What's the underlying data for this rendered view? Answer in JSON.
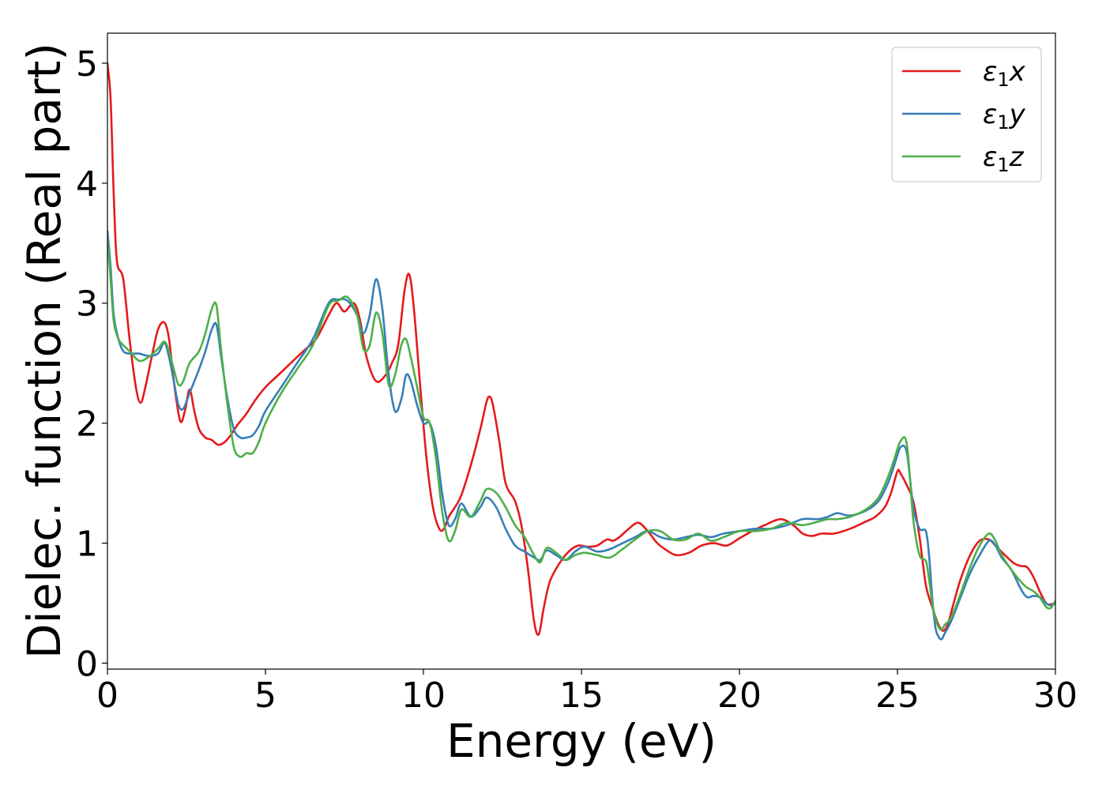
{
  "chart_data": {
    "type": "line",
    "title": "",
    "xlabel": "Energy (eV)",
    "ylabel": "Dielec. function (Real part)",
    "xlim": [
      0,
      30
    ],
    "ylim": [
      -0.05,
      5.25
    ],
    "xticks": [
      0,
      5,
      10,
      15,
      20,
      25,
      30
    ],
    "yticks": [
      0,
      1,
      2,
      3,
      4,
      5
    ],
    "grid": false,
    "legend_position": "top-right",
    "series": [
      {
        "name": "ε₁x",
        "legend_base": "ε",
        "legend_sub": "1",
        "legend_suffix": "x",
        "color": "#e41a1c",
        "x": [
          0,
          0.1,
          0.2,
          0.3,
          0.5,
          0.7,
          0.9,
          1.05,
          1.2,
          1.4,
          1.6,
          1.8,
          1.95,
          2.1,
          2.3,
          2.45,
          2.6,
          2.75,
          2.9,
          3.1,
          3.3,
          3.5,
          3.7,
          3.9,
          4.1,
          4.4,
          4.7,
          5.0,
          5.4,
          5.8,
          6.2,
          6.6,
          7.0,
          7.25,
          7.5,
          7.8,
          8.0,
          8.2,
          8.5,
          8.8,
          9.0,
          9.2,
          9.4,
          9.55,
          9.7,
          9.9,
          10.1,
          10.3,
          10.5,
          10.65,
          10.8,
          11.0,
          11.2,
          11.5,
          11.8,
          12.0,
          12.1,
          12.2,
          12.4,
          12.6,
          12.9,
          13.1,
          13.3,
          13.5,
          13.65,
          13.8,
          14.0,
          14.3,
          14.6,
          14.9,
          15.2,
          15.5,
          15.8,
          16.0,
          16.2,
          16.5,
          16.8,
          17.1,
          17.4,
          17.7,
          18.0,
          18.4,
          18.8,
          19.2,
          19.6,
          20.0,
          20.4,
          20.8,
          21.3,
          21.7,
          22.0,
          22.3,
          22.6,
          23.0,
          23.5,
          24.0,
          24.3,
          24.6,
          24.8,
          25.0,
          25.1,
          25.3,
          25.5,
          25.7,
          25.9,
          26.1,
          26.3,
          26.45,
          26.6,
          26.8,
          27.0,
          27.3,
          27.6,
          27.9,
          28.1,
          28.4,
          28.7,
          28.9,
          29.1,
          29.3,
          29.5,
          29.7,
          29.85,
          30.0
        ],
        "y": [
          5.0,
          4.7,
          3.9,
          3.35,
          3.2,
          2.7,
          2.3,
          2.17,
          2.3,
          2.55,
          2.78,
          2.84,
          2.7,
          2.35,
          2.02,
          2.1,
          2.28,
          2.1,
          1.95,
          1.88,
          1.86,
          1.82,
          1.84,
          1.9,
          1.98,
          2.08,
          2.2,
          2.3,
          2.4,
          2.5,
          2.6,
          2.7,
          2.9,
          3.0,
          2.93,
          3.0,
          2.85,
          2.55,
          2.35,
          2.4,
          2.5,
          2.65,
          3.1,
          3.24,
          2.95,
          2.3,
          1.7,
          1.3,
          1.12,
          1.12,
          1.22,
          1.3,
          1.4,
          1.65,
          1.95,
          2.18,
          2.22,
          2.15,
          1.85,
          1.5,
          1.35,
          1.15,
          0.8,
          0.35,
          0.24,
          0.45,
          0.68,
          0.83,
          0.93,
          0.98,
          0.97,
          0.98,
          1.03,
          1.02,
          1.05,
          1.12,
          1.17,
          1.1,
          1.0,
          0.94,
          0.9,
          0.92,
          0.98,
          1.0,
          0.98,
          1.04,
          1.1,
          1.15,
          1.2,
          1.15,
          1.08,
          1.06,
          1.08,
          1.08,
          1.12,
          1.18,
          1.22,
          1.3,
          1.42,
          1.6,
          1.58,
          1.48,
          1.35,
          1.05,
          0.65,
          0.47,
          0.32,
          0.27,
          0.33,
          0.52,
          0.7,
          0.9,
          1.02,
          1.03,
          0.98,
          0.9,
          0.83,
          0.81,
          0.8,
          0.72,
          0.6,
          0.5,
          0.49,
          0.5
        ]
      },
      {
        "name": "ε₁y",
        "legend_base": "ε",
        "legend_sub": "1",
        "legend_suffix": "y",
        "color": "#377eb8",
        "x": [
          0,
          0.1,
          0.2,
          0.35,
          0.5,
          0.7,
          1.0,
          1.3,
          1.6,
          1.8,
          1.95,
          2.1,
          2.25,
          2.4,
          2.6,
          2.9,
          3.1,
          3.3,
          3.45,
          3.6,
          3.8,
          4.0,
          4.2,
          4.4,
          4.6,
          4.8,
          5.0,
          5.5,
          6.0,
          6.5,
          7.0,
          7.3,
          7.6,
          7.9,
          8.1,
          8.3,
          8.5,
          8.7,
          8.9,
          9.1,
          9.3,
          9.45,
          9.6,
          9.8,
          10.0,
          10.2,
          10.4,
          10.6,
          10.8,
          11.0,
          11.2,
          11.5,
          11.8,
          12.0,
          12.3,
          12.6,
          12.9,
          13.2,
          13.5,
          13.7,
          13.9,
          14.2,
          14.5,
          14.8,
          15.1,
          15.5,
          15.9,
          16.3,
          16.7,
          17.1,
          17.5,
          17.9,
          18.3,
          18.7,
          19.1,
          19.5,
          20.0,
          20.5,
          21.0,
          21.5,
          22.0,
          22.5,
          22.8,
          23.1,
          23.5,
          24.0,
          24.4,
          24.7,
          24.9,
          25.1,
          25.3,
          25.5,
          25.7,
          25.9,
          26.0,
          26.1,
          26.2,
          26.3,
          26.4,
          26.5,
          26.7,
          27.0,
          27.3,
          27.6,
          27.9,
          28.1,
          28.3,
          28.6,
          28.9,
          29.1,
          29.3,
          29.5,
          29.7,
          29.85,
          30.0
        ],
        "y": [
          3.6,
          3.3,
          2.9,
          2.7,
          2.6,
          2.58,
          2.58,
          2.56,
          2.58,
          2.67,
          2.55,
          2.35,
          2.15,
          2.12,
          2.25,
          2.45,
          2.6,
          2.78,
          2.82,
          2.55,
          2.2,
          1.95,
          1.88,
          1.88,
          1.9,
          1.98,
          2.1,
          2.3,
          2.5,
          2.7,
          3.0,
          3.03,
          3.02,
          2.9,
          2.75,
          2.9,
          3.2,
          2.95,
          2.4,
          2.1,
          2.2,
          2.4,
          2.35,
          2.15,
          2.0,
          2.0,
          1.8,
          1.4,
          1.15,
          1.2,
          1.33,
          1.22,
          1.3,
          1.38,
          1.3,
          1.12,
          0.98,
          0.93,
          0.88,
          0.86,
          0.94,
          0.9,
          0.86,
          0.93,
          0.97,
          0.93,
          0.95,
          1.0,
          1.05,
          1.1,
          1.05,
          1.03,
          1.05,
          1.07,
          1.05,
          1.08,
          1.1,
          1.12,
          1.12,
          1.15,
          1.2,
          1.2,
          1.22,
          1.25,
          1.23,
          1.27,
          1.35,
          1.5,
          1.65,
          1.8,
          1.75,
          1.3,
          1.12,
          1.1,
          0.9,
          0.55,
          0.3,
          0.22,
          0.2,
          0.25,
          0.35,
          0.55,
          0.75,
          0.9,
          1.02,
          0.98,
          0.88,
          0.78,
          0.62,
          0.55,
          0.56,
          0.55,
          0.5,
          0.48,
          0.5
        ]
      },
      {
        "name": "ε₁z",
        "legend_base": "ε",
        "legend_sub": "1",
        "legend_suffix": "z",
        "color": "#4daf4a",
        "x": [
          0,
          0.1,
          0.2,
          0.35,
          0.5,
          0.7,
          1.0,
          1.3,
          1.6,
          1.8,
          1.95,
          2.1,
          2.25,
          2.4,
          2.6,
          2.9,
          3.1,
          3.3,
          3.45,
          3.6,
          3.8,
          4.0,
          4.2,
          4.4,
          4.6,
          4.8,
          5.0,
          5.5,
          6.0,
          6.5,
          7.0,
          7.3,
          7.6,
          7.9,
          8.1,
          8.3,
          8.5,
          8.7,
          8.9,
          9.1,
          9.3,
          9.45,
          9.6,
          9.8,
          10.0,
          10.2,
          10.4,
          10.6,
          10.8,
          11.0,
          11.2,
          11.5,
          11.8,
          12.0,
          12.3,
          12.6,
          12.9,
          13.2,
          13.5,
          13.7,
          13.9,
          14.2,
          14.5,
          14.8,
          15.1,
          15.5,
          15.9,
          16.3,
          16.7,
          17.1,
          17.5,
          17.9,
          18.3,
          18.7,
          19.1,
          19.5,
          20.0,
          20.5,
          21.0,
          21.5,
          22.0,
          22.5,
          22.8,
          23.1,
          23.5,
          24.0,
          24.4,
          24.7,
          24.9,
          25.1,
          25.3,
          25.5,
          25.7,
          25.9,
          26.0,
          26.1,
          26.2,
          26.3,
          26.4,
          26.5,
          26.7,
          27.0,
          27.3,
          27.6,
          27.9,
          28.1,
          28.3,
          28.6,
          28.9,
          29.1,
          29.3,
          29.5,
          29.7,
          29.85,
          30.0
        ],
        "y": [
          3.55,
          3.2,
          2.85,
          2.7,
          2.65,
          2.6,
          2.52,
          2.55,
          2.62,
          2.68,
          2.6,
          2.45,
          2.32,
          2.35,
          2.5,
          2.6,
          2.75,
          2.95,
          2.98,
          2.6,
          2.15,
          1.8,
          1.72,
          1.75,
          1.75,
          1.85,
          2.0,
          2.25,
          2.45,
          2.65,
          2.98,
          3.02,
          3.05,
          2.9,
          2.62,
          2.65,
          2.92,
          2.75,
          2.32,
          2.4,
          2.65,
          2.7,
          2.55,
          2.3,
          2.05,
          2.0,
          1.7,
          1.25,
          1.02,
          1.1,
          1.28,
          1.22,
          1.35,
          1.45,
          1.42,
          1.3,
          1.15,
          1.05,
          0.9,
          0.84,
          0.96,
          0.92,
          0.86,
          0.9,
          0.92,
          0.9,
          0.88,
          0.95,
          1.03,
          1.1,
          1.1,
          1.03,
          1.03,
          1.08,
          1.02,
          1.05,
          1.1,
          1.1,
          1.12,
          1.17,
          1.15,
          1.18,
          1.2,
          1.2,
          1.22,
          1.28,
          1.38,
          1.55,
          1.7,
          1.85,
          1.82,
          1.2,
          0.9,
          0.85,
          0.7,
          0.5,
          0.38,
          0.3,
          0.28,
          0.32,
          0.38,
          0.58,
          0.8,
          0.98,
          1.08,
          1.02,
          0.9,
          0.78,
          0.68,
          0.63,
          0.6,
          0.55,
          0.47,
          0.46,
          0.52
        ]
      }
    ]
  }
}
